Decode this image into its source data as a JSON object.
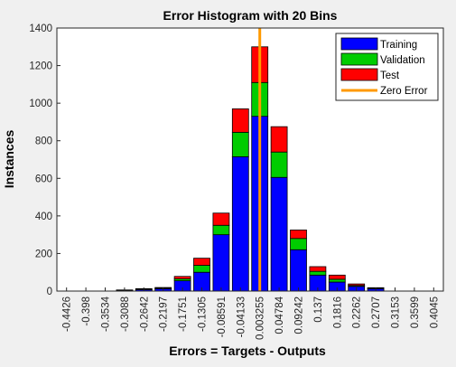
{
  "chart_data": {
    "type": "bar",
    "stacked": true,
    "title": "Error Histogram with 20 Bins",
    "xlabel": "Errors = Targets - Outputs",
    "ylabel": "Instances",
    "categories": [
      "-0.4426",
      "-0.398",
      "-0.3534",
      "-0.3088",
      "-0.2642",
      "-0.2197",
      "-0.1751",
      "-0.1305",
      "-0.08591",
      "-0.04133",
      "0.003255",
      "0.04784",
      "0.09242",
      "0.137",
      "0.1816",
      "0.2262",
      "0.2707",
      "0.3153",
      "0.3599",
      "0.4045"
    ],
    "series": [
      {
        "name": "Training",
        "color": "#0000ff",
        "values": [
          0,
          0,
          0,
          4,
          8,
          12,
          55,
          100,
          300,
          715,
          930,
          605,
          220,
          85,
          48,
          25,
          12,
          0,
          0,
          0
        ]
      },
      {
        "name": "Validation",
        "color": "#00cc00",
        "values": [
          0,
          0,
          0,
          1,
          2,
          3,
          10,
          37,
          50,
          130,
          180,
          135,
          60,
          20,
          15,
          5,
          3,
          0,
          0,
          0
        ]
      },
      {
        "name": "Test",
        "color": "#ff0000",
        "values": [
          0,
          0,
          0,
          1,
          3,
          4,
          13,
          38,
          65,
          125,
          190,
          135,
          45,
          25,
          22,
          8,
          3,
          0,
          0,
          0
        ]
      }
    ],
    "zero_error": {
      "name": "Zero Error",
      "color": "#ff9900",
      "x_category": "0.003255"
    },
    "ylim": [
      0,
      1400
    ],
    "yticks": [
      0,
      200,
      400,
      600,
      800,
      1000,
      1200,
      1400
    ],
    "legend_position": "top-right",
    "grid": false
  }
}
